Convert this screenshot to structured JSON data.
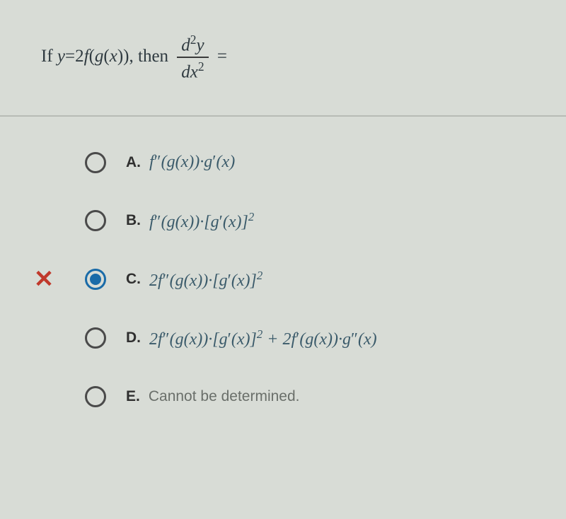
{
  "question": {
    "prefix": "If ",
    "lhs_html": "y=2f(g(x)),",
    "mid": " then ",
    "frac_num_html": "d<span class='sup'>2</span>y",
    "frac_den_html": "dx<span class='sup'>2</span>",
    "suffix": " ="
  },
  "choices": [
    {
      "letter": "A.",
      "math_html": "f&nbsp;<span class='prime'>&Prime;</span>(g(x))&middot;g<span class='prime'>&prime;</span>(x)",
      "selected": false,
      "wrong": false
    },
    {
      "letter": "B.",
      "math_html": "f&nbsp;<span class='prime'>&Prime;</span>(g(x))&middot;[g<span class='prime'>&prime;</span>(x)]<span class='sup'>2</span>",
      "selected": false,
      "wrong": false
    },
    {
      "letter": "C.",
      "math_html": "2f&nbsp;<span class='prime'>&Prime;</span>(g(x))&middot;[g<span class='prime'>&prime;</span>(x)]<span class='sup'>2</span>",
      "selected": true,
      "wrong": true
    },
    {
      "letter": "D.",
      "math_html": "2f&nbsp;<span class='prime'>&Prime;</span>(g(x))&middot;[g<span class='prime'>&prime;</span>(x)]<span class='sup'>2</span> + 2f<span class='prime'>&prime;</span>(g(x))&middot;g<span class='prime'>&Prime;</span>(x)",
      "selected": false,
      "wrong": false
    },
    {
      "letter": "E.",
      "plain_text": "Cannot be determined.",
      "selected": false,
      "wrong": false
    }
  ],
  "colors": {
    "background": "#d8dcd6",
    "text": "#4a4a4a",
    "math": "#3a5a6a",
    "accent": "#1a6ba8",
    "wrong": "#c0392b",
    "divider": "#b7bbb5"
  }
}
